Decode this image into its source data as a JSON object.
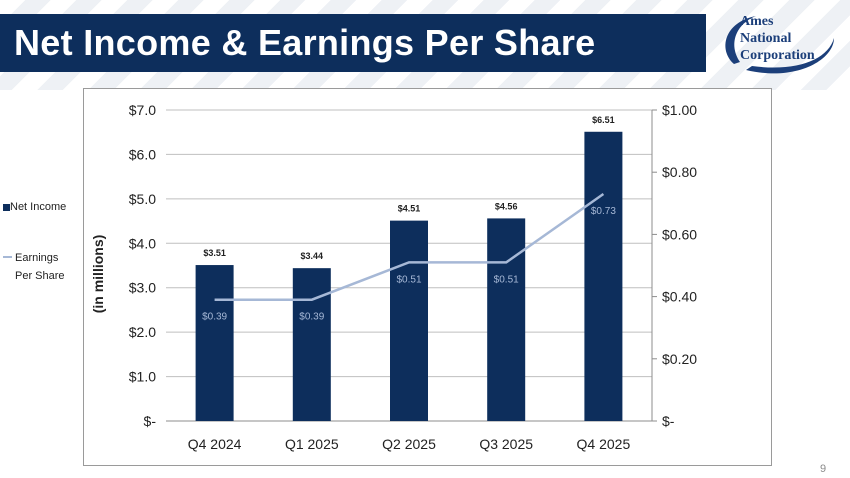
{
  "slide": {
    "title": "Net Income & Earnings Per Share",
    "page_number": "9",
    "logo_lines": [
      "Ames",
      "National",
      "Corporation"
    ]
  },
  "colors": {
    "title_bg": "#0d2e5c",
    "bar": "#0d2e5c",
    "eps_line": "#a6b8d6",
    "grid": "#bfbfbf"
  },
  "chart_data": {
    "type": "bar",
    "categories": [
      "Q4 2024",
      "Q1 2025",
      "Q2 2025",
      "Q3 2025",
      "Q4 2025"
    ],
    "series": [
      {
        "name": "Net Income",
        "type": "bar",
        "axis": "left",
        "values": [
          3.51,
          3.44,
          4.51,
          4.56,
          6.51
        ],
        "labels": [
          "$3.51",
          "$3.44",
          "$4.51",
          "$4.56",
          "$6.51"
        ]
      },
      {
        "name": "Earnings Per Share",
        "type": "line",
        "axis": "right",
        "values": [
          0.39,
          0.39,
          0.51,
          0.51,
          0.73
        ],
        "labels": [
          "$0.39",
          "$0.39",
          "$0.51",
          "$0.51",
          "$0.73"
        ]
      }
    ],
    "ylabel": "(in millions)",
    "ylim": [
      0,
      7
    ],
    "y_ticks": [
      0,
      1,
      2,
      3,
      4,
      5,
      6,
      7
    ],
    "y_tick_labels": [
      "$-",
      "$1.0",
      "$2.0",
      "$3.0",
      "$4.0",
      "$5.0",
      "$6.0",
      "$7.0"
    ],
    "y2lim": [
      0,
      1
    ],
    "y2_ticks": [
      0,
      0.2,
      0.4,
      0.6,
      0.8,
      1.0
    ],
    "y2_tick_labels": [
      "$-",
      "$0.20",
      "$0.40",
      "$0.60",
      "$0.80",
      "$1.00"
    ],
    "grid": true,
    "legend_position": "left"
  }
}
